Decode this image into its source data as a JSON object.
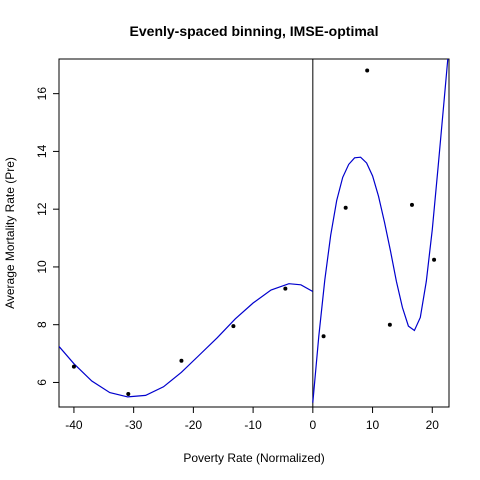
{
  "chart_data": {
    "type": "scatter",
    "title": "Evenly-spaced binning, IMSE-optimal",
    "xlabel": "Poverty Rate (Normalized)",
    "ylabel": "Average Mortality Rate (Pre)",
    "xlim": [
      -42.5,
      22.8
    ],
    "ylim": [
      5.15,
      17.2
    ],
    "x_ticks": [
      -40,
      -30,
      -20,
      -10,
      0,
      10,
      20
    ],
    "y_ticks": [
      6,
      8,
      10,
      12,
      14,
      16
    ],
    "cutoff": 0,
    "colors": {
      "points": "#000000",
      "fit": "#0000cd",
      "cutoff_line": "#000000",
      "frame": "#000000"
    },
    "points": {
      "x": [
        -40.0,
        -30.9,
        -22.0,
        -13.3,
        -4.6,
        1.8,
        5.5,
        9.1,
        12.9,
        16.6,
        20.3
      ],
      "y": [
        6.55,
        5.6,
        6.75,
        7.95,
        9.25,
        7.6,
        12.05,
        16.8,
        8.0,
        12.15,
        10.25
      ]
    },
    "fit_left": {
      "x": [
        -42.5,
        -40,
        -37,
        -34,
        -31,
        -28,
        -25,
        -22,
        -19,
        -16,
        -13,
        -10,
        -7,
        -4,
        -2,
        0
      ],
      "y": [
        7.25,
        6.65,
        6.05,
        5.65,
        5.5,
        5.55,
        5.85,
        6.35,
        6.95,
        7.55,
        8.2,
        8.75,
        9.2,
        9.42,
        9.38,
        9.15
      ]
    },
    "fit_right": {
      "x": [
        0,
        1,
        2,
        3,
        4,
        5,
        6,
        7,
        8,
        9,
        10,
        11,
        12,
        13,
        14,
        15,
        16,
        17,
        18,
        19,
        20,
        21,
        22,
        22.6
      ],
      "y": [
        5.3,
        7.6,
        9.55,
        11.1,
        12.3,
        13.1,
        13.55,
        13.78,
        13.8,
        13.6,
        13.15,
        12.45,
        11.55,
        10.55,
        9.5,
        8.6,
        7.95,
        7.8,
        8.25,
        9.5,
        11.3,
        13.5,
        15.8,
        17.2
      ]
    }
  }
}
